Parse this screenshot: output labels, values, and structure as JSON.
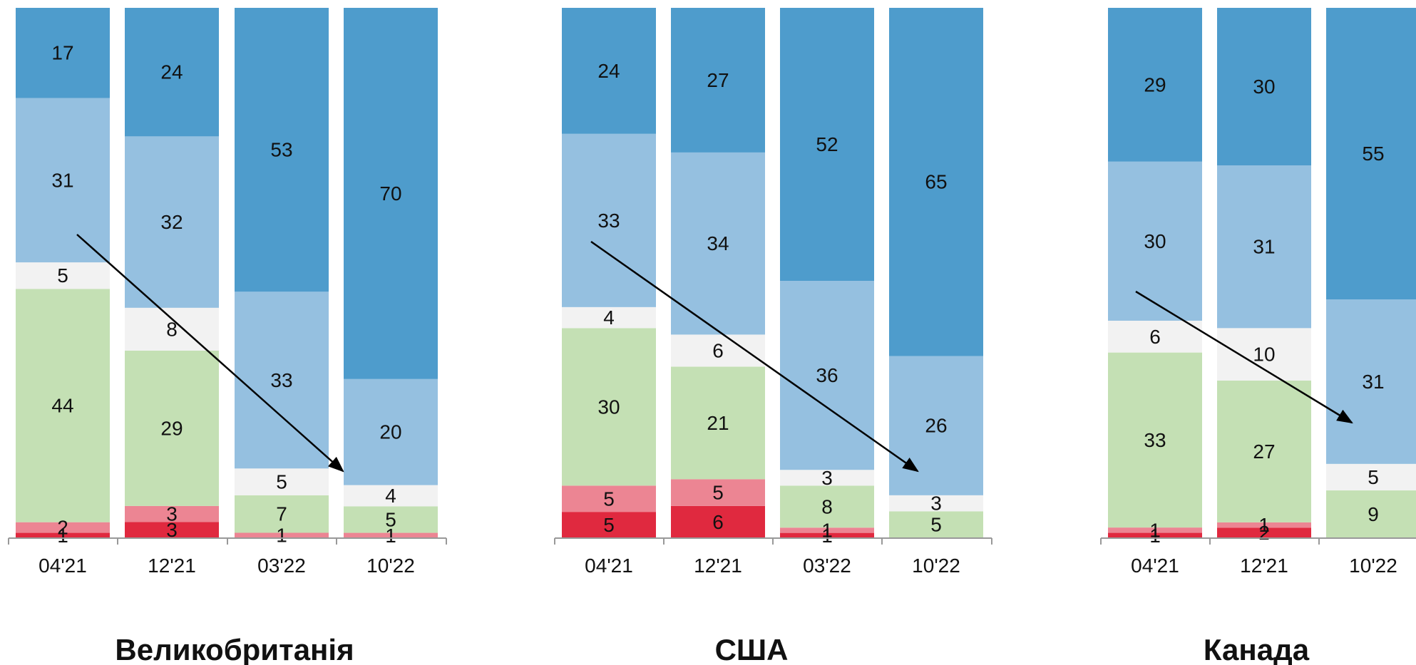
{
  "colors": {
    "c1": "#e0293f",
    "c2": "#ec8593",
    "c3": "#c4e0b4",
    "c4": "#f2f2f2",
    "c5": "#95c0e0",
    "c6": "#4e9ccc",
    "arrow": "#000000",
    "axis": "#999999"
  },
  "chart_data": [
    {
      "type": "bar",
      "stacked": true,
      "title": "Великобританія",
      "categories": [
        "04'21",
        "12'21",
        "03'22",
        "10'22"
      ],
      "series": [
        {
          "values": [
            1,
            3,
            0,
            0
          ]
        },
        {
          "values": [
            2,
            3,
            1,
            1
          ]
        },
        {
          "values": [
            44,
            29,
            7,
            5
          ]
        },
        {
          "values": [
            5,
            8,
            5,
            4
          ]
        },
        {
          "values": [
            31,
            32,
            33,
            20
          ]
        },
        {
          "values": [
            17,
            24,
            53,
            70
          ]
        }
      ],
      "ylim": [
        0,
        100
      ]
    },
    {
      "type": "bar",
      "stacked": true,
      "title": "США",
      "categories": [
        "04'21",
        "12'21",
        "03'22",
        "10'22"
      ],
      "series": [
        {
          "values": [
            5,
            6,
            1,
            0
          ]
        },
        {
          "values": [
            5,
            5,
            1,
            0
          ]
        },
        {
          "values": [
            30,
            21,
            8,
            5
          ]
        },
        {
          "values": [
            4,
            6,
            3,
            3
          ]
        },
        {
          "values": [
            33,
            34,
            36,
            26
          ]
        },
        {
          "values": [
            24,
            27,
            52,
            65
          ]
        }
      ],
      "ylim": [
        0,
        100
      ]
    },
    {
      "type": "bar",
      "stacked": true,
      "title": "Канада",
      "categories": [
        "04'21",
        "12'21",
        "10'22"
      ],
      "series": [
        {
          "values": [
            1,
            2,
            0
          ]
        },
        {
          "values": [
            1,
            1,
            0
          ]
        },
        {
          "values": [
            33,
            27,
            9
          ]
        },
        {
          "values": [
            6,
            10,
            5
          ]
        },
        {
          "values": [
            30,
            31,
            31
          ]
        },
        {
          "values": [
            29,
            30,
            55
          ]
        }
      ],
      "ylim": [
        0,
        100
      ]
    }
  ]
}
